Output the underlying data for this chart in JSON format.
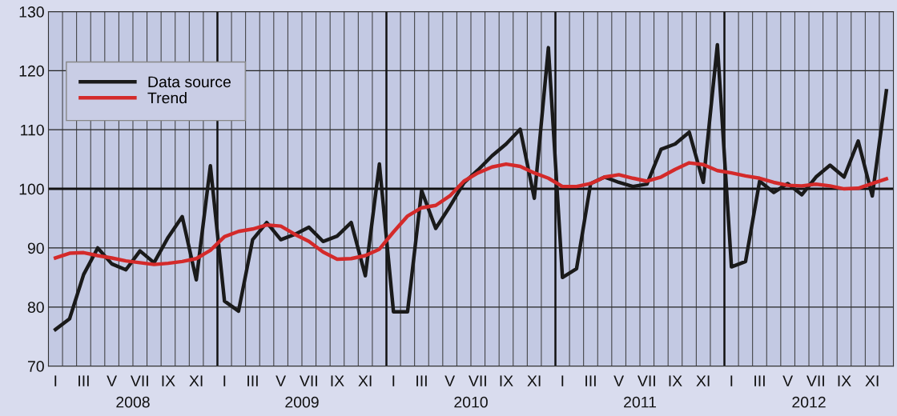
{
  "chart_data": {
    "type": "line",
    "categories": [
      "I",
      null,
      "III",
      null,
      "V",
      null,
      "VII",
      null,
      "IX",
      null,
      "XI",
      null,
      "I",
      null,
      "III",
      null,
      "V",
      null,
      "VII",
      null,
      "IX",
      null,
      "XI",
      null,
      "I",
      null,
      "III",
      null,
      "V",
      null,
      "VII",
      null,
      "IX",
      null,
      "XI",
      null,
      "I",
      null,
      "III",
      null,
      "V",
      null,
      "VII",
      null,
      "IX",
      null,
      "XI",
      null,
      "I",
      null,
      "III",
      null,
      "V",
      null,
      "VII",
      null,
      "IX",
      null,
      "XI",
      null
    ],
    "series": [
      {
        "name": "Data source",
        "color": "#1a1a1a",
        "values": [
          76.2,
          78.0,
          85.5,
          90.0,
          87.3,
          86.3,
          89.5,
          87.5,
          91.8,
          95.3,
          84.6,
          103.9,
          81.0,
          79.3,
          91.4,
          94.3,
          91.4,
          92.3,
          93.5,
          91.1,
          92.0,
          94.3,
          85.3,
          104.2,
          79.2,
          79.2,
          99.7,
          93.3,
          97.0,
          101.0,
          103.2,
          105.6,
          107.6,
          110.1,
          98.4,
          123.9,
          85.0,
          86.5,
          100.9,
          102.0,
          101.1,
          100.4,
          100.8,
          106.7,
          107.6,
          109.6,
          101.1,
          124.4,
          86.8,
          87.7,
          101.3,
          99.4,
          100.9,
          99.0,
          102.0,
          104.0,
          102.0,
          108.1,
          98.8,
          116.6
        ]
      },
      {
        "name": "Trend",
        "color": "#d42a2a",
        "values": [
          88.3,
          89.1,
          89.2,
          88.7,
          88.3,
          87.8,
          87.5,
          87.2,
          87.4,
          87.7,
          88.2,
          89.6,
          91.9,
          92.8,
          93.2,
          93.9,
          93.7,
          92.3,
          91.1,
          89.3,
          88.1,
          88.2,
          88.7,
          89.8,
          92.7,
          95.4,
          96.8,
          97.2,
          98.8,
          101.3,
          102.7,
          103.7,
          104.2,
          103.8,
          102.7,
          101.8,
          100.4,
          100.4,
          100.9,
          102.0,
          102.4,
          101.8,
          101.3,
          102.0,
          103.3,
          104.4,
          104.1,
          103.1,
          102.7,
          102.2,
          101.8,
          101.1,
          100.6,
          100.5,
          100.8,
          100.5,
          100.0,
          100.1,
          100.9,
          101.7
        ]
      }
    ],
    "annotations": [
      "2008",
      "2009",
      "2010",
      "2011",
      "2012"
    ],
    "ylim": [
      70,
      130
    ],
    "yticks": [
      70,
      80,
      90,
      100,
      110,
      120,
      130
    ],
    "ref_lines": [
      {
        "axis": "y",
        "value": 100,
        "color": "#111111"
      }
    ],
    "grid": true,
    "legend": "top left",
    "line_style": "solid",
    "marker": "none"
  }
}
